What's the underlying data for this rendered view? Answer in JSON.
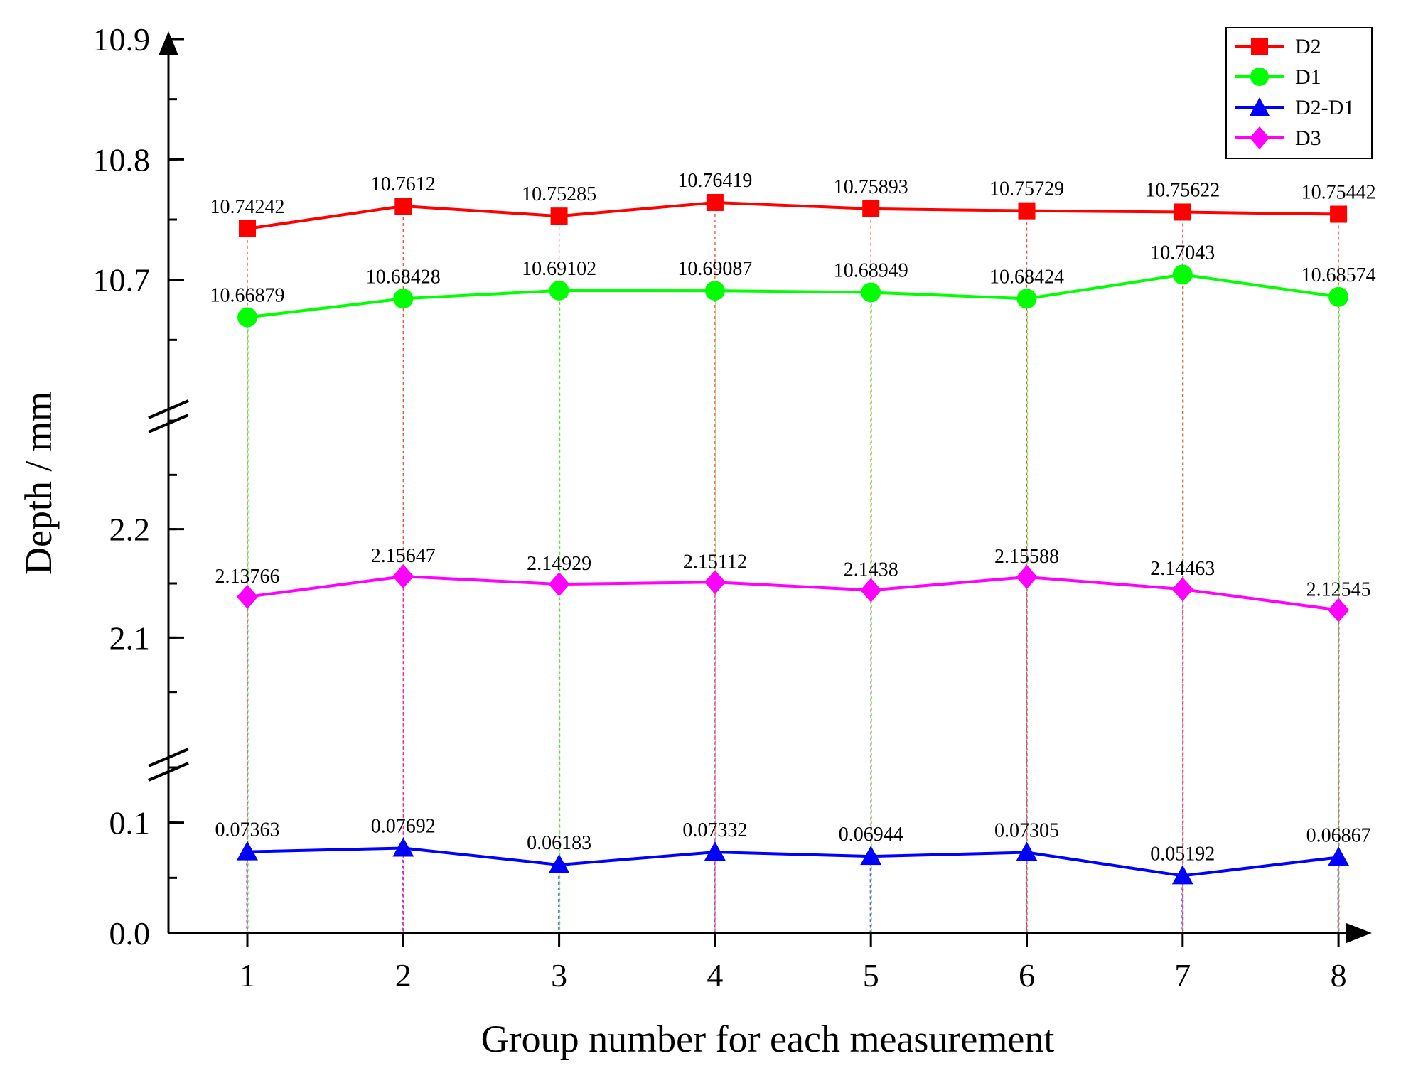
{
  "chart_data": {
    "type": "line",
    "title": "",
    "xlabel": "Group number for each measurement",
    "ylabel": "Depth / mm",
    "categories": [
      "1",
      "2",
      "3",
      "4",
      "5",
      "6",
      "7",
      "8"
    ],
    "axis_breaks": [
      {
        "name": "upper",
        "range": [
          10.6,
          10.9
        ],
        "ticks": [
          10.7,
          10.8,
          10.9
        ],
        "tick_labels": [
          "10.7",
          "10.8",
          "10.9"
        ]
      },
      {
        "name": "middle",
        "range": [
          2.0,
          2.3
        ],
        "ticks": [
          2.1,
          2.2
        ],
        "tick_labels": [
          "2.1",
          "2.2"
        ]
      },
      {
        "name": "lower",
        "range": [
          0.0,
          0.15
        ],
        "ticks": [
          0.0,
          0.1
        ],
        "tick_labels": [
          "0.0",
          "0.1"
        ]
      }
    ],
    "series": [
      {
        "name": "D2",
        "segment": "upper",
        "marker": "square",
        "color": "#ff0000",
        "values": [
          10.74242,
          10.7612,
          10.75285,
          10.76419,
          10.75893,
          10.75729,
          10.75622,
          10.75442
        ],
        "labels": [
          "10.74242",
          "10.7612",
          "10.75285",
          "10.76419",
          "10.75893",
          "10.75729",
          "10.75622",
          "10.75442"
        ]
      },
      {
        "name": "D1",
        "segment": "upper",
        "marker": "circle",
        "color": "#00ff00",
        "values": [
          10.66879,
          10.68428,
          10.69102,
          10.69087,
          10.68949,
          10.68424,
          10.7043,
          10.68574
        ],
        "labels": [
          "10.66879",
          "10.68428",
          "10.69102",
          "10.69087",
          "10.68949",
          "10.68424",
          "10.7043",
          "10.68574"
        ]
      },
      {
        "name": "D2-D1",
        "segment": "lower",
        "marker": "triangle",
        "color": "#0000ff",
        "values": [
          0.07363,
          0.07692,
          0.06183,
          0.07332,
          0.06944,
          0.07305,
          0.05192,
          0.06867
        ],
        "labels": [
          "0.07363",
          "0.07692",
          "0.06183",
          "0.07332",
          "0.06944",
          "0.07305",
          "0.05192",
          "0.06867"
        ]
      },
      {
        "name": "D3",
        "segment": "middle",
        "marker": "diamond",
        "color": "#ff00ff",
        "values": [
          2.13766,
          2.15647,
          2.14929,
          2.15112,
          2.1438,
          2.15588,
          2.14463,
          2.12545
        ],
        "labels": [
          "2.13766",
          "2.15647",
          "2.14929",
          "2.15112",
          "2.1438",
          "2.15588",
          "2.14463",
          "2.12545"
        ]
      }
    ],
    "legend": {
      "placement": "top-right",
      "entries": [
        "D2",
        "D1",
        "D2-D1",
        "D3"
      ]
    }
  }
}
